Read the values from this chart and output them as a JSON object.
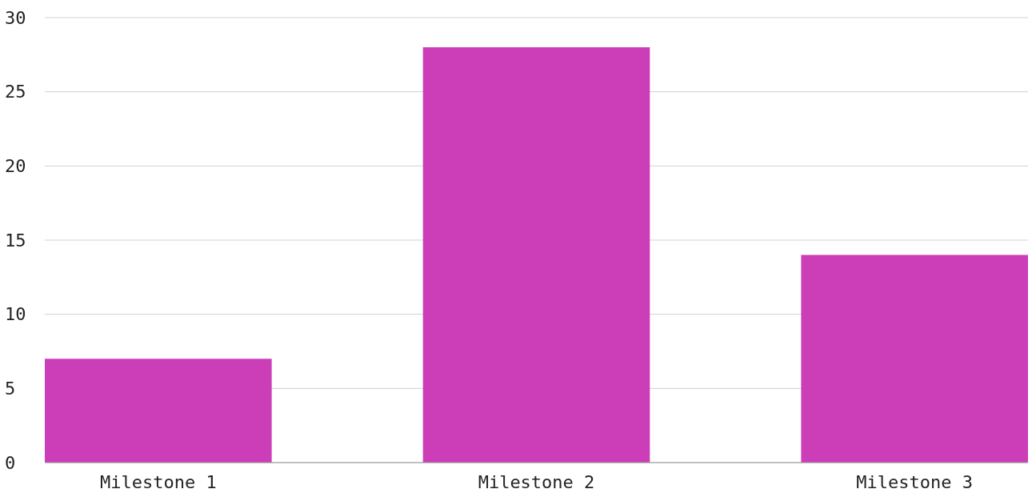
{
  "chart_data": {
    "type": "bar",
    "categories": [
      "Milestone 1",
      "Milestone 2",
      "Milestone 3"
    ],
    "values": [
      7,
      28,
      14
    ],
    "color": "#cc3db8",
    "ylim": [
      0,
      30
    ],
    "yticks": [
      0,
      5,
      10,
      15,
      20,
      25,
      30
    ],
    "grid": "y"
  }
}
